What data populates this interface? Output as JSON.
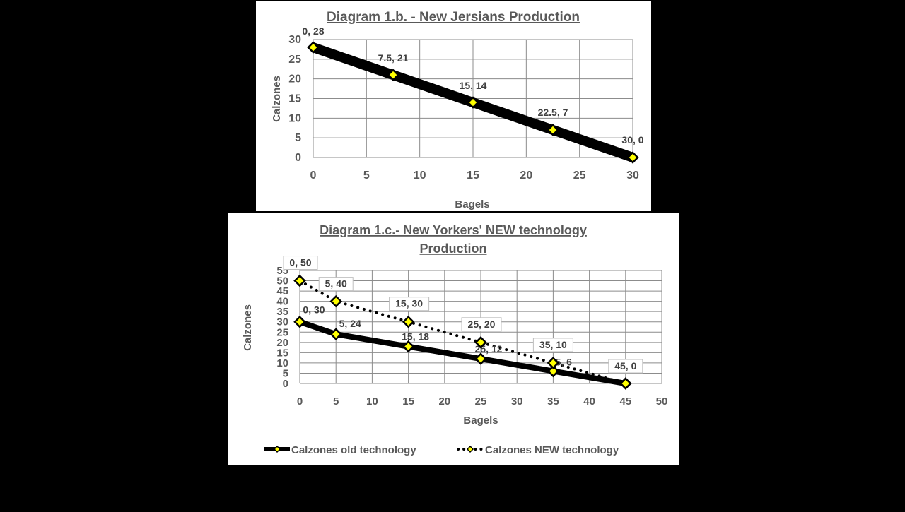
{
  "chart_data": [
    {
      "type": "line",
      "title": "Diagram 1.b. - New Jersians Production",
      "xlabel": "Bagels",
      "ylabel": "Calzones",
      "xlim": [
        0,
        30
      ],
      "ylim": [
        0,
        30
      ],
      "xticks": [
        "0",
        "5",
        "10",
        "15",
        "20",
        "25",
        "30"
      ],
      "yticks": [
        "0",
        "5",
        "10",
        "15",
        "20",
        "25",
        "30"
      ],
      "grid": true,
      "legend": "none",
      "series": [
        {
          "x": [
            0,
            7.5,
            15,
            22.5,
            30
          ],
          "y": [
            28,
            21,
            14,
            7,
            0
          ],
          "labels": [
            "0, 28",
            "7.5, 21",
            "15, 14",
            "22.5, 7",
            "30, 0"
          ],
          "line_color": "#000000",
          "marker_color": "#FFFF00",
          "style": "solid"
        }
      ]
    },
    {
      "type": "line",
      "title": "Diagram 1.c.- New Yorkers' NEW technology Production",
      "title_lines": [
        "Diagram 1.c.- New Yorkers' NEW technology",
        "Production"
      ],
      "xlabel": "Bagels",
      "ylabel": "Calzones",
      "xlim": [
        0,
        50
      ],
      "ylim": [
        0,
        55
      ],
      "xticks": [
        "0",
        "5",
        "10",
        "15",
        "20",
        "25",
        "30",
        "35",
        "40",
        "45",
        "50"
      ],
      "yticks": [
        "0",
        "5",
        "10",
        "15",
        "20",
        "25",
        "30",
        "35",
        "40",
        "45",
        "50",
        "55"
      ],
      "grid": true,
      "legend": "bottom",
      "series": [
        {
          "name": "Calzones old technology",
          "x": [
            0,
            5,
            15,
            25,
            35,
            45
          ],
          "y": [
            30,
            24,
            18,
            12,
            6,
            0
          ],
          "labels": [
            "0, 30",
            "5, 24",
            "15, 18",
            "25, 12",
            "35, 6",
            ""
          ],
          "line_color": "#000000",
          "marker_color": "#FFFF00",
          "style": "solid"
        },
        {
          "name": "Calzones NEW technology",
          "x": [
            0,
            5,
            15,
            25,
            35,
            45
          ],
          "y": [
            50,
            40,
            30,
            20,
            10,
            0
          ],
          "labels": [
            "0, 50",
            "5, 40",
            "15, 30",
            "25, 20",
            "35, 10",
            "45, 0"
          ],
          "line_color": "#000000",
          "marker_color": "#FFFF00",
          "style": "dotted"
        }
      ]
    }
  ]
}
